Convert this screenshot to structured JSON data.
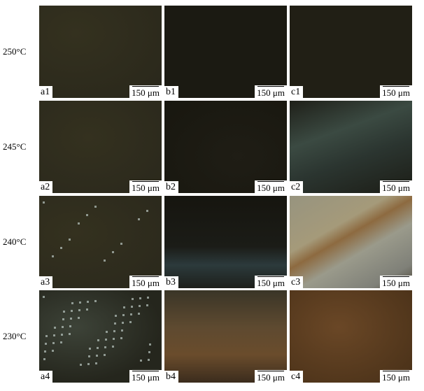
{
  "rows": [
    {
      "label": "250°C",
      "panels": [
        {
          "id": "a1",
          "scale": "150 μm"
        },
        {
          "id": "b1",
          "scale": "150 μm"
        },
        {
          "id": "c1",
          "scale": "150 μm"
        }
      ]
    },
    {
      "label": "245°C",
      "panels": [
        {
          "id": "a2",
          "scale": "150 μm"
        },
        {
          "id": "b2",
          "scale": "150 μm"
        },
        {
          "id": "c2",
          "scale": "150 μm"
        }
      ]
    },
    {
      "label": "240°C",
      "panels": [
        {
          "id": "a3",
          "scale": "150 μm"
        },
        {
          "id": "b3",
          "scale": "150 μm"
        },
        {
          "id": "c3",
          "scale": "150 μm"
        }
      ]
    },
    {
      "label": "230°C",
      "panels": [
        {
          "id": "a4",
          "scale": "150 μm"
        },
        {
          "id": "b4",
          "scale": "150 μm"
        },
        {
          "id": "c4",
          "scale": "150 μm"
        }
      ]
    }
  ]
}
